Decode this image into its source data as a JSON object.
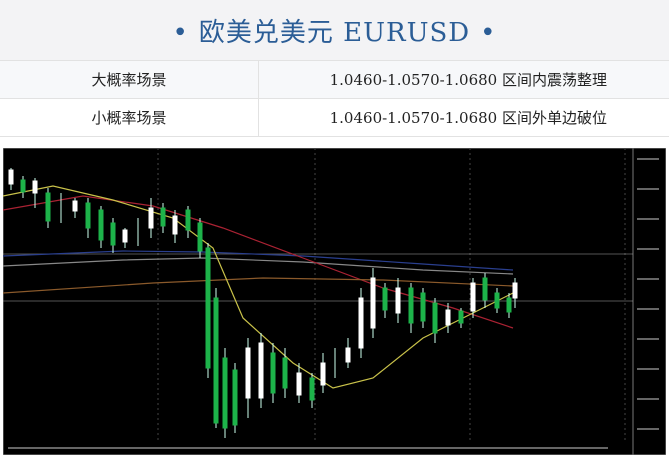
{
  "header": {
    "title": "欧美兑美元 EURUSD"
  },
  "table": {
    "rows": [
      [
        "大概率场景",
        "1.0460-1.0570-1.0680 区间内震荡整理"
      ],
      [
        "小概率场景",
        "1.0460-1.0570-1.0680 区间外单边破位"
      ]
    ]
  }
}
